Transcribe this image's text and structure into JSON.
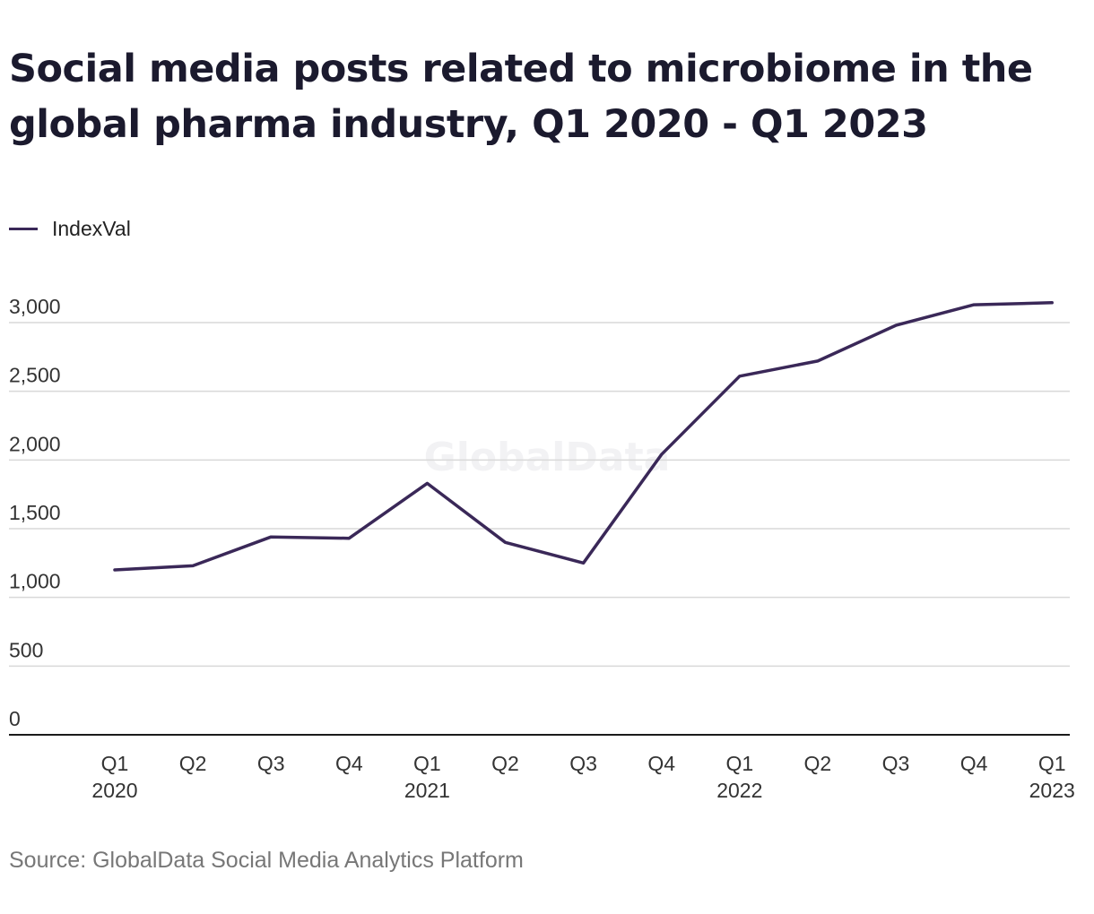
{
  "title": "Social media posts related to microbiome in the global pharma industry, Q1 2020 - Q1 2023",
  "source": "Source: GlobalData Social Media Analytics Platform",
  "watermark": "GlobalData",
  "colors": {
    "line": "#3a2858",
    "grid": "#d9d9d9",
    "axis": "#1a1a1a"
  },
  "chart_data": {
    "type": "line",
    "title": "Social media posts related to microbiome in the global pharma industry, Q1 2020 - Q1 2023",
    "xlabel": "",
    "ylabel": "",
    "ylim": [
      0,
      3000
    ],
    "yticks": [
      0,
      500,
      1000,
      1500,
      2000,
      2500,
      3000
    ],
    "ytick_labels": [
      "0",
      "500",
      "1,000",
      "1,500",
      "2,000",
      "2,500",
      "3,000"
    ],
    "grid": true,
    "legend": "top-left",
    "categories": [
      {
        "quarter": "Q1",
        "year": "2020"
      },
      {
        "quarter": "Q2",
        "year": ""
      },
      {
        "quarter": "Q3",
        "year": ""
      },
      {
        "quarter": "Q4",
        "year": ""
      },
      {
        "quarter": "Q1",
        "year": "2021"
      },
      {
        "quarter": "Q2",
        "year": ""
      },
      {
        "quarter": "Q3",
        "year": ""
      },
      {
        "quarter": "Q4",
        "year": ""
      },
      {
        "quarter": "Q1",
        "year": "2022"
      },
      {
        "quarter": "Q2",
        "year": ""
      },
      {
        "quarter": "Q3",
        "year": ""
      },
      {
        "quarter": "Q4",
        "year": ""
      },
      {
        "quarter": "Q1",
        "year": "2023"
      }
    ],
    "series": [
      {
        "name": "IndexVal",
        "values": [
          1200,
          1230,
          1440,
          1430,
          1830,
          1400,
          1250,
          2040,
          2610,
          2720,
          2980,
          3130,
          3145
        ]
      }
    ]
  }
}
